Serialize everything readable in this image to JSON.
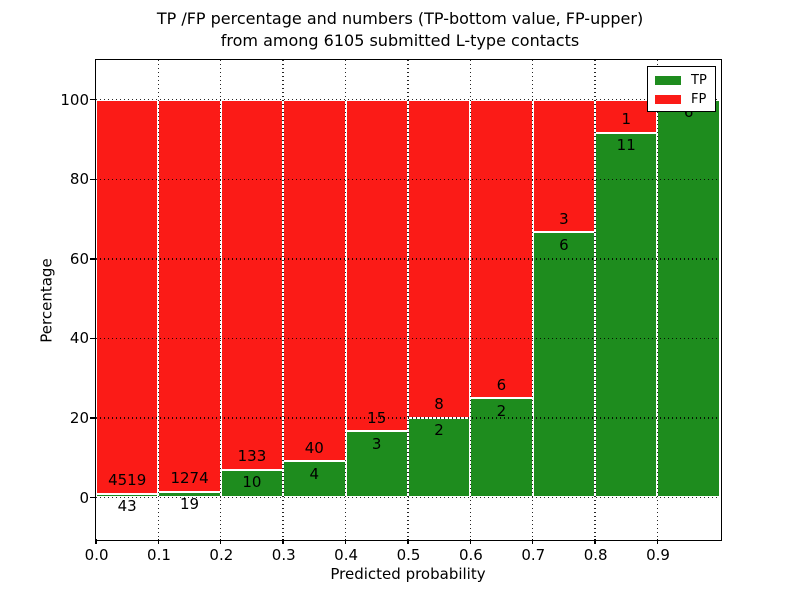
{
  "figure": {
    "title_line1": "TP /FP percentage and numbers (TP-bottom value, FP-upper)",
    "title_line2": "from among 6105 submitted L-type contacts"
  },
  "chart_data": {
    "type": "bar",
    "stacked": true,
    "normalized": "each bin scaled to 100%",
    "title": "TP /FP percentage and numbers (TP-bottom value, FP-upper) from among 6105 submitted L-type contacts",
    "xlabel": "Predicted probability",
    "ylabel": "Percentage",
    "total_contacts": 6105,
    "categories": [
      "0.0-0.1",
      "0.1-0.2",
      "0.2-0.3",
      "0.3-0.4",
      "0.4-0.5",
      "0.5-0.6",
      "0.6-0.7",
      "0.7-0.8",
      "0.8-0.9",
      "0.9-1.0"
    ],
    "series": [
      {
        "name": "TP",
        "color": "#1e8c1e",
        "counts": [
          43,
          19,
          10,
          4,
          3,
          2,
          2,
          6,
          11,
          6
        ]
      },
      {
        "name": "FP",
        "color": "#fb1b17",
        "counts": [
          4519,
          1274,
          133,
          40,
          15,
          8,
          6,
          3,
          1,
          0
        ]
      }
    ],
    "tp_percent": [
      0.94,
      1.47,
      6.99,
      9.09,
      16.67,
      20.0,
      25.0,
      66.67,
      91.67,
      100.0
    ],
    "x_tick_labels": [
      "0.0",
      "0.1",
      "0.2",
      "0.3",
      "0.4",
      "0.5",
      "0.6",
      "0.7",
      "0.8",
      "0.9"
    ],
    "y_ticks": [
      0,
      20,
      40,
      60,
      80,
      100
    ],
    "xlim": [
      0.0,
      1.0
    ],
    "ylim": [
      -10.4,
      110
    ],
    "grid": "dotted black, both axes, drawn over bars",
    "bar_edge_color": "#ffffff",
    "legend_position": "upper right",
    "legend_entries": [
      "TP",
      "FP"
    ]
  }
}
